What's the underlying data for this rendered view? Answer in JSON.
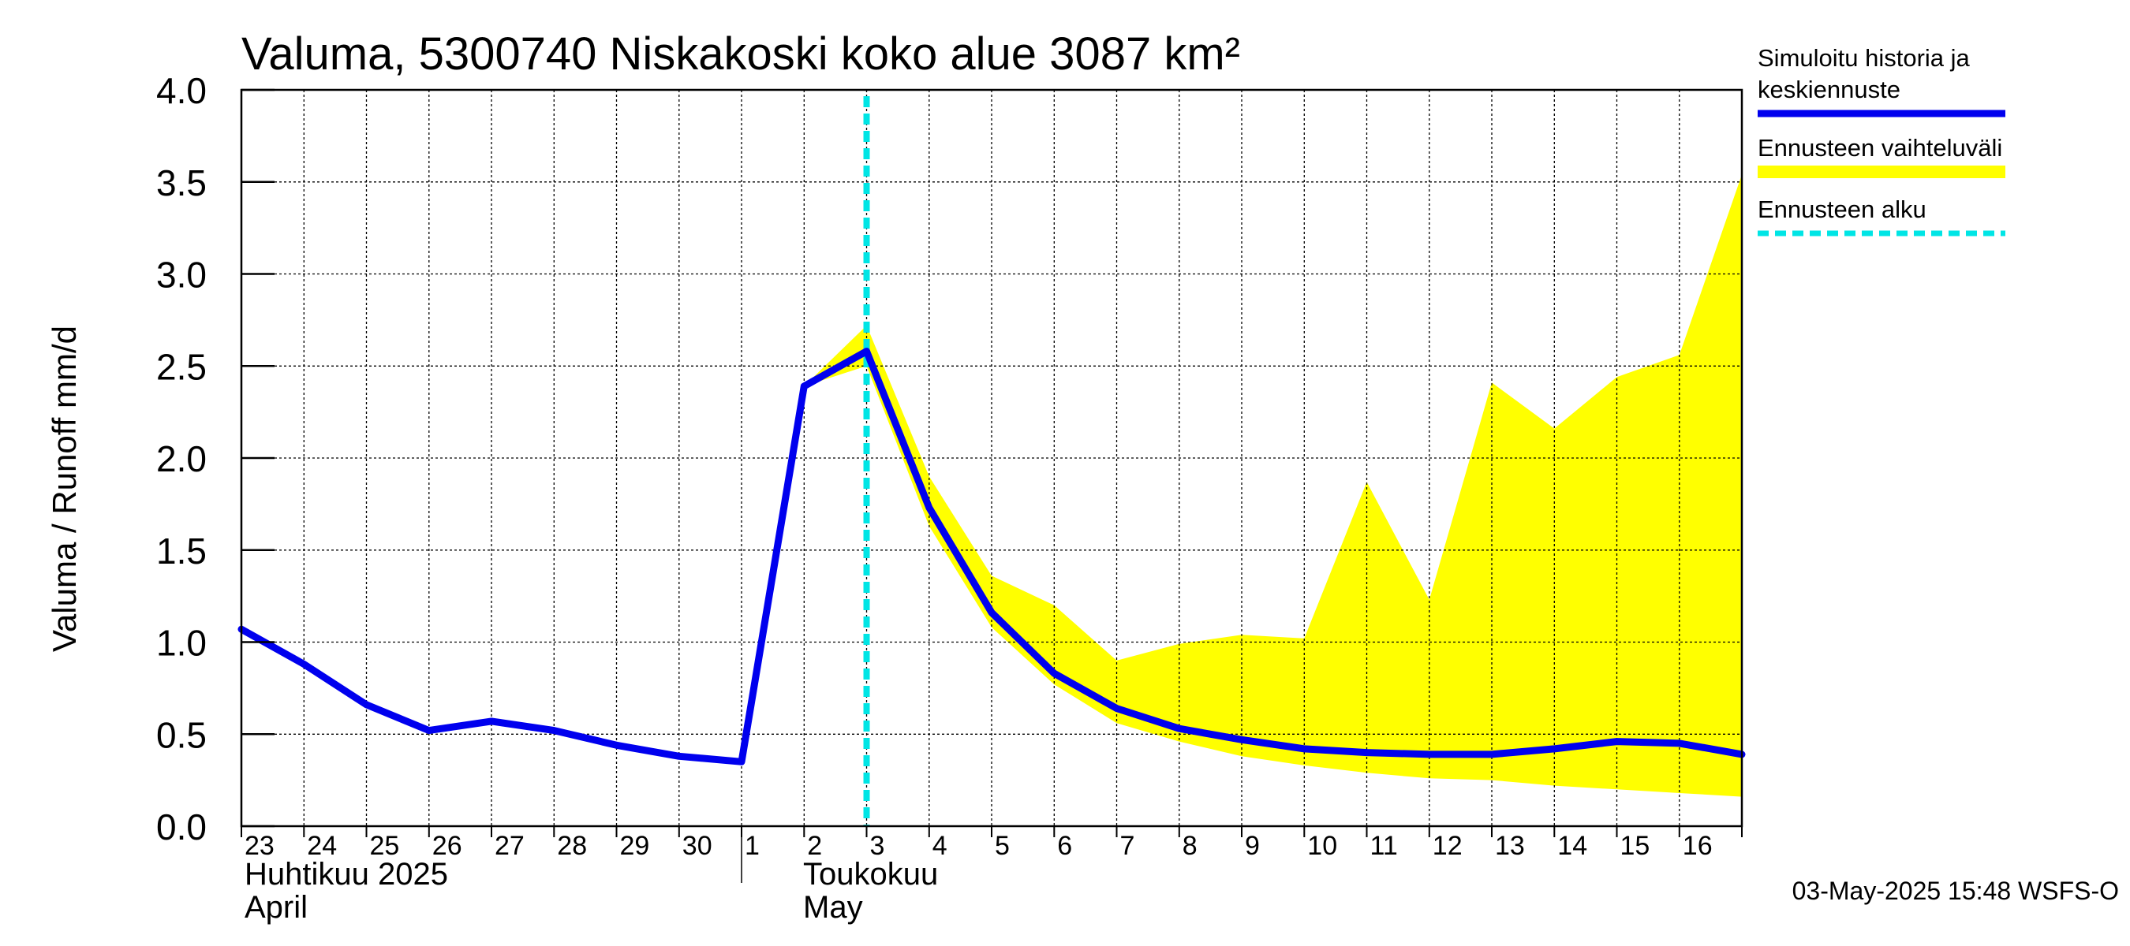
{
  "chart_data": {
    "type": "line",
    "title": "Valuma, 5300740 Niskakoski koko alue 3087 km²",
    "ylabel": "Valuma / Runoff    mm/d",
    "ylim": [
      0,
      4
    ],
    "yticks": [
      "0.0",
      "0.5",
      "1.0",
      "1.5",
      "2.0",
      "2.5",
      "3.0",
      "3.5",
      "4.0"
    ],
    "grid": true,
    "legend_position": "right",
    "x": [
      "2025-04-23",
      "2025-04-24",
      "2025-04-25",
      "2025-04-26",
      "2025-04-27",
      "2025-04-28",
      "2025-04-29",
      "2025-04-30",
      "2025-05-01",
      "2025-05-02",
      "2025-05-03",
      "2025-05-04",
      "2025-05-05",
      "2025-05-06",
      "2025-05-07",
      "2025-05-08",
      "2025-05-09",
      "2025-05-10",
      "2025-05-11",
      "2025-05-12",
      "2025-05-13",
      "2025-05-14",
      "2025-05-15",
      "2025-05-16",
      "2025-05-17"
    ],
    "xtick_labels": [
      "23",
      "24",
      "25",
      "26",
      "27",
      "28",
      "29",
      "30",
      "1",
      "2",
      "3",
      "4",
      "5",
      "6",
      "7",
      "8",
      "9",
      "10",
      "11",
      "12",
      "13",
      "14",
      "15",
      "16"
    ],
    "month_labels": [
      {
        "date": "2025-04-23",
        "line1": "Huhtikuu  2025",
        "line2": "April"
      },
      {
        "date": "2025-05-01",
        "line1": "Toukokuu",
        "line2": "May"
      }
    ],
    "series": [
      {
        "name": "Simuloitu historia ja keskiennuste",
        "color": "#0000ee",
        "values": [
          1.07,
          0.88,
          0.66,
          0.52,
          0.57,
          0.52,
          0.44,
          0.38,
          0.35,
          2.39,
          2.58,
          1.73,
          1.16,
          0.83,
          0.64,
          0.53,
          0.47,
          0.42,
          0.4,
          0.39,
          0.39,
          0.42,
          0.46,
          0.45,
          0.39
        ]
      }
    ],
    "band": {
      "name": "Ennusteen vaihteluväli",
      "color": "#ffff00",
      "x": [
        "2025-05-02",
        "2025-05-03",
        "2025-05-04",
        "2025-05-05",
        "2025-05-06",
        "2025-05-07",
        "2025-05-08",
        "2025-05-09",
        "2025-05-10",
        "2025-05-11",
        "2025-05-12",
        "2025-05-13",
        "2025-05-14",
        "2025-05-15",
        "2025-05-16",
        "2025-05-17"
      ],
      "upper": [
        2.39,
        2.72,
        1.9,
        1.36,
        1.2,
        0.9,
        0.99,
        1.04,
        1.02,
        1.87,
        1.23,
        2.41,
        2.16,
        2.44,
        2.56,
        3.54
      ],
      "lower": [
        2.39,
        2.5,
        1.63,
        1.08,
        0.77,
        0.56,
        0.46,
        0.38,
        0.33,
        0.29,
        0.26,
        0.25,
        0.22,
        0.2,
        0.18,
        0.16
      ]
    },
    "forecast_start": {
      "name": "Ennusteen alku",
      "date": "2025-05-03",
      "color": "#00e5e5"
    },
    "legend": [
      {
        "line1": "Simuloitu historia ja",
        "line2": "keskiennuste",
        "kind": "line",
        "color": "#0000ee"
      },
      {
        "line1": "Ennusteen vaihteluväli",
        "line2": "",
        "kind": "band",
        "color": "#ffff00"
      },
      {
        "line1": "Ennusteen alku",
        "line2": "",
        "kind": "dashed",
        "color": "#00e5e5"
      }
    ]
  },
  "footer": "03-May-2025 15:48 WSFS-O"
}
